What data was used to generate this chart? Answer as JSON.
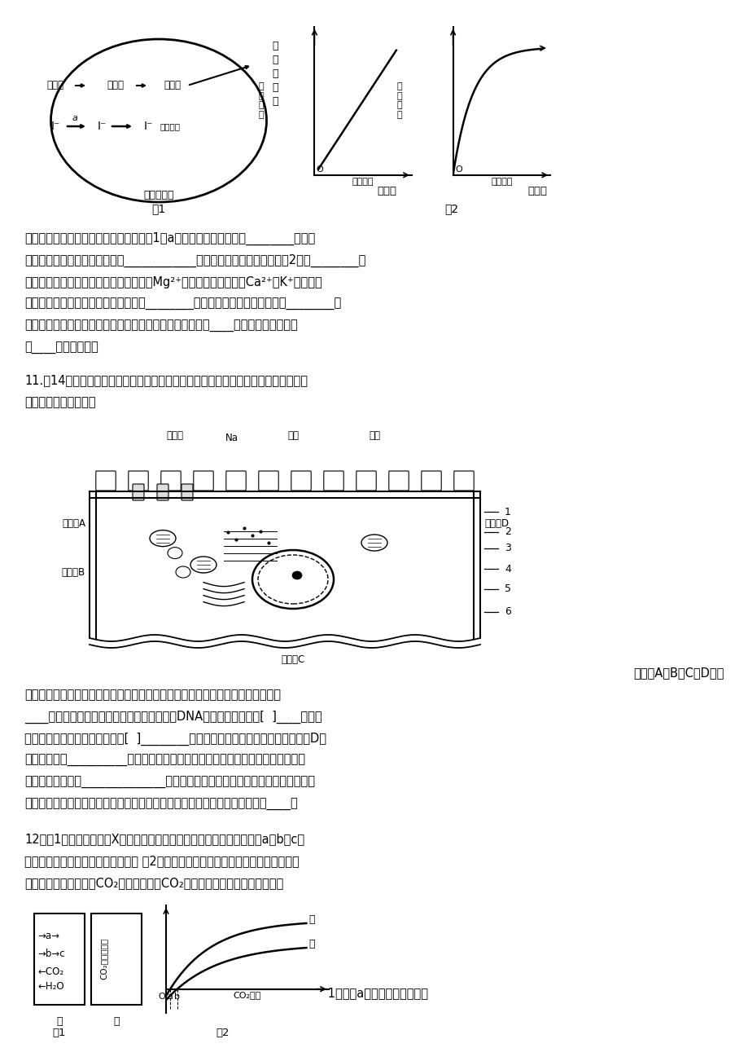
{
  "bg_color": "#ffffff",
  "page_width": 9.2,
  "page_height": 13.02,
  "font_body": 10.5,
  "font_small": 8.5,
  "q10_lines": [
    "细胞内的碘浓度远远高于血浆，这表明图1中a过程跨膜运输的方式是________，这种",
    "运输方式对活细胞的生理意义是____________。苯进出细胞的方式一般是图2中的________。",
    "若对离体的心肌细胞使用某种毒素，结果Mg²⁺的吸收显著减少，而Ca²⁺、K⁺、葡萄糖",
    "等物质的吸收没有受到影响，其原因是________，这表明细胞膜具有的特性是________。",
    "甲状腺细胞分泌甲状腺球蛋白过程中体现了细胞内生物膜的____和结构相似，在结构",
    "和____上紧密联系。"
  ],
  "q11_lines": [
    "11.（14分）下图表示人小肠上皮细胞亚显微结构示意图，回答下列问题（括号中填数",
    "字，横线上填文字）。"
  ],
  "q11_body_lines": [
    "膜蛋白A、B、C、D的功",
    "能各不相同，这主要是由它们的结构差异造成的，导致其结构差异的直接原因是：",
    "____。在小肠上皮细胞中除细胞核外，还含有DNA的细胞器是图中的[  ]____。图中",
    "细胞器在原核细胞中也存在的是[  ]________。细胞膜表面还存在水解双糖的膜蛋白D，",
    "说明膜蛋白有__________功能。在制备细胞膜时，选用哺乳动物成熟的红细胞作为",
    "实验材料的原因是______________。若用某种药物处理此细胞，发现细胞吸收钠离",
    "子数量明显减少，但对其它离子吸收没有影响，说明化学药品影响的是图中的____。"
  ],
  "q12_lines": [
    "12．图1表示某绿色植物X叶肉细胞中进行的两个相关的生理过程，其中a、b、c表",
    "示物质，甲和乙分别表示某种细胞器 图2表示在适宜温度、水分和一定的光照强度下，",
    "丙、丁两种植物叶片的CO₂净吸收速率与CO₂浓度的关系。请回答下列问题："
  ]
}
